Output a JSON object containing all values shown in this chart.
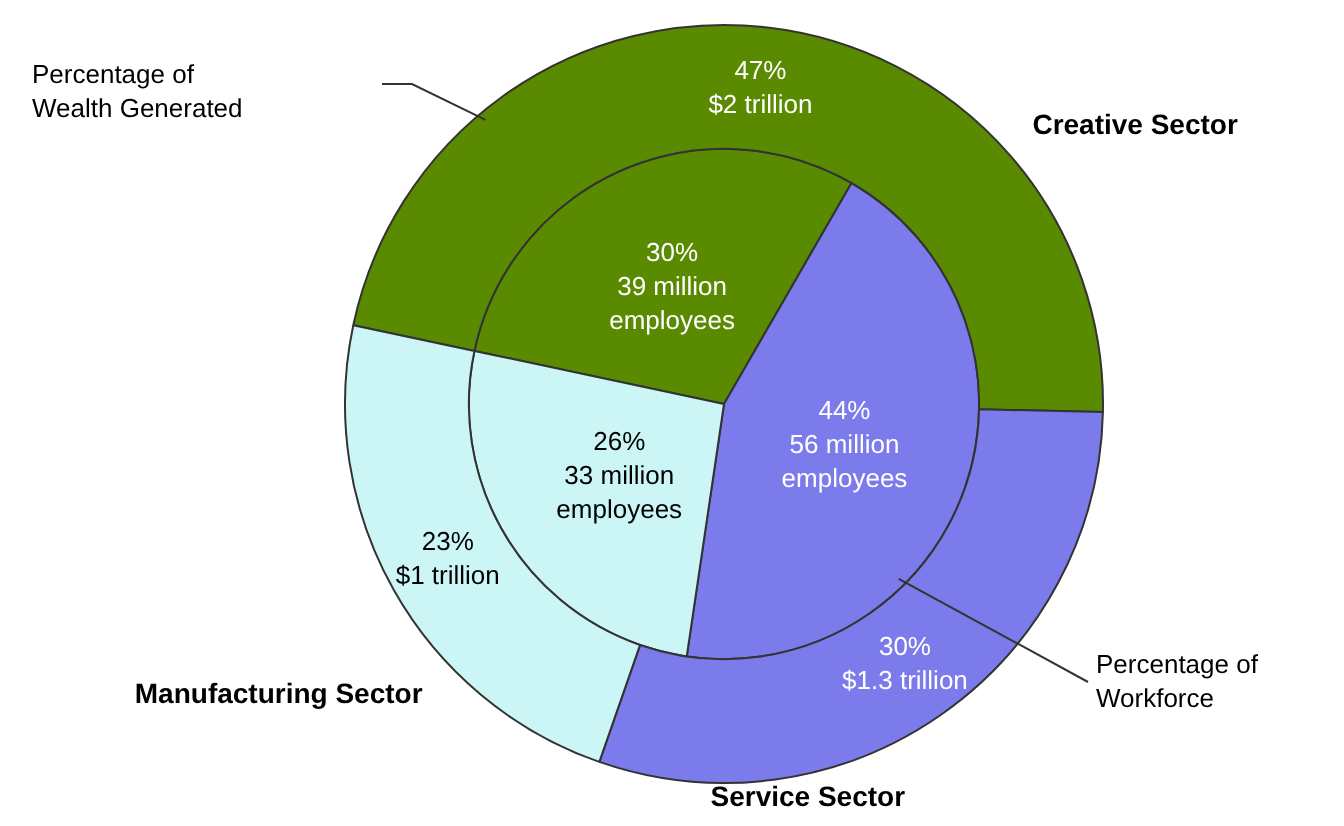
{
  "chart_data": {
    "type": "pie",
    "categories": [
      "Creative Sector",
      "Service Sector",
      "Manufacturing Sector"
    ],
    "colors": [
      "#5a8a00",
      "#7b7bec",
      "#ccf6f6"
    ],
    "legend": false,
    "series": [
      {
        "name": "Percentage of Wealth Generated",
        "values": [
          47,
          30,
          23
        ],
        "value_labels": [
          "47%\n$2 trillion",
          "30%\n$1.3 trillion",
          "23%\n$1 trillion"
        ]
      },
      {
        "name": "Percentage of Workforce",
        "values": [
          30,
          44,
          26
        ],
        "value_labels": [
          "30%\n39 million\nemployees",
          "44%\n56 million\nemployees",
          "26%\n33 million\nemployees"
        ]
      }
    ]
  }
}
